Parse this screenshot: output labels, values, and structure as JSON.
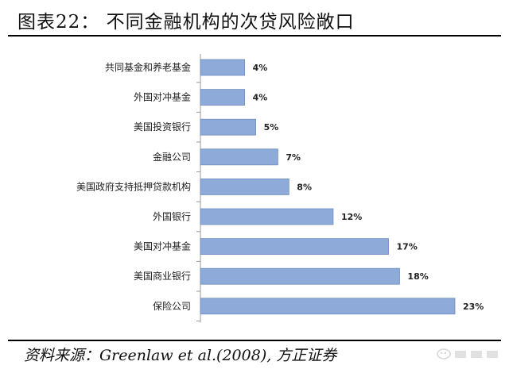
{
  "title": "图表22：  不同金融机构的次贷风险敞口",
  "source": "资料来源：Greenlaw et al.(2008), 方正证券",
  "colors": {
    "bar": "#8eaad8",
    "bar_edge": "#6f8dc0",
    "axis": "#999999"
  },
  "chart_data": {
    "type": "bar",
    "orientation": "horizontal",
    "categories": [
      "共同基金和养老基金",
      "外国对冲基金",
      "美国投资银行",
      "金融公司",
      "美国政府支持抵押贷款机构",
      "外国银行",
      "美国对冲基金",
      "美国商业银行",
      "保险公司"
    ],
    "values": [
      4,
      4,
      5,
      7,
      8,
      12,
      17,
      18,
      23
    ],
    "value_labels": [
      "4%",
      "4%",
      "5%",
      "7%",
      "8%",
      "12%",
      "17%",
      "18%",
      "23%"
    ],
    "xlim": [
      0,
      23
    ],
    "grid": false,
    "legend": "none"
  }
}
